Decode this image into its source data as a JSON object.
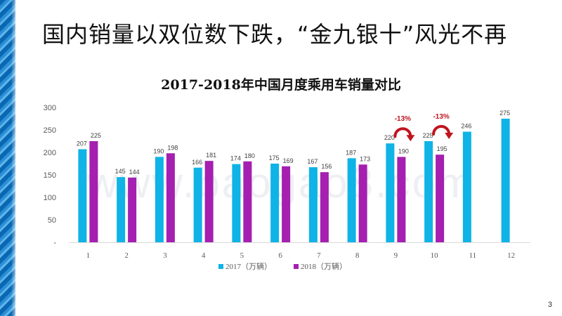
{
  "slide": {
    "title": "国内销量以双位数下跌，“金九银十”风光不再",
    "page_number": "3",
    "watermark": "www.baogao8.com"
  },
  "colors": {
    "series_2017": "#0fb3e6",
    "series_2018": "#a51fb0",
    "annotation": "#c0141e",
    "axis_text": "#595959",
    "gridline": "#d9d9d9"
  },
  "chart_data": {
    "type": "bar",
    "title": "2017-2018年中国月度乘用车销量对比",
    "categories": [
      "1",
      "2",
      "3",
      "4",
      "5",
      "6",
      "7",
      "8",
      "9",
      "10",
      "11",
      "12"
    ],
    "series": [
      {
        "name": "2017（万辆）",
        "values": [
          207,
          145,
          190,
          166,
          174,
          175,
          167,
          187,
          220,
          225,
          246,
          275
        ]
      },
      {
        "name": "2018（万辆）",
        "values": [
          225,
          144,
          198,
          181,
          180,
          169,
          156,
          173,
          190,
          195,
          null,
          null
        ]
      }
    ],
    "yticks": [
      "-",
      "50",
      "100",
      "150",
      "200",
      "250",
      "300"
    ],
    "ylim": [
      0,
      300
    ],
    "grid": false,
    "legend": "bottom",
    "annotations": [
      {
        "text": "-13%",
        "category": "9"
      },
      {
        "text": "-13%",
        "category": "10"
      }
    ]
  }
}
